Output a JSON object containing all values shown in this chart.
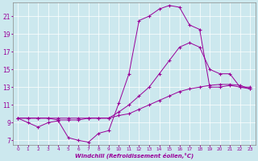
{
  "xlabel": "Windchill (Refroidissement éolien,°C)",
  "bg_color": "#cce8ee",
  "line_color": "#990099",
  "xlim": [
    -0.5,
    23.5
  ],
  "ylim": [
    6.5,
    22.5
  ],
  "xticks": [
    0,
    1,
    2,
    3,
    4,
    5,
    6,
    7,
    8,
    9,
    10,
    11,
    12,
    13,
    14,
    15,
    16,
    17,
    18,
    19,
    20,
    21,
    22,
    23
  ],
  "yticks": [
    7,
    9,
    11,
    13,
    15,
    17,
    19,
    21
  ],
  "curve1_x": [
    0,
    1,
    2,
    3,
    4,
    5,
    6,
    7,
    8,
    9,
    10,
    11,
    12,
    13,
    14,
    15,
    16,
    17,
    18,
    19,
    20,
    21,
    22,
    23
  ],
  "curve1_y": [
    9.5,
    9.0,
    8.5,
    9.0,
    9.2,
    7.3,
    7.0,
    6.8,
    7.8,
    8.1,
    11.2,
    14.5,
    20.5,
    21.0,
    21.8,
    22.2,
    22.0,
    20.0,
    19.5,
    13.0,
    13.0,
    13.2,
    13.0,
    12.8
  ],
  "curve2_x": [
    0,
    1,
    2,
    3,
    4,
    5,
    6,
    7,
    8,
    9,
    10,
    11,
    12,
    13,
    14,
    15,
    16,
    17,
    18,
    19,
    20,
    21,
    22,
    23
  ],
  "curve2_y": [
    9.5,
    9.5,
    9.5,
    9.5,
    9.3,
    9.3,
    9.3,
    9.5,
    9.5,
    9.5,
    10.2,
    11.0,
    12.0,
    13.0,
    14.5,
    16.0,
    17.5,
    18.0,
    17.5,
    15.0,
    14.5,
    14.5,
    13.0,
    13.0
  ],
  "curve3_x": [
    0,
    1,
    2,
    3,
    4,
    5,
    6,
    7,
    8,
    9,
    10,
    11,
    12,
    13,
    14,
    15,
    16,
    17,
    18,
    19,
    20,
    21,
    22,
    23
  ],
  "curve3_y": [
    9.5,
    9.5,
    9.5,
    9.5,
    9.5,
    9.5,
    9.5,
    9.5,
    9.5,
    9.5,
    9.8,
    10.0,
    10.5,
    11.0,
    11.5,
    12.0,
    12.5,
    12.8,
    13.0,
    13.2,
    13.3,
    13.3,
    13.2,
    12.8
  ]
}
